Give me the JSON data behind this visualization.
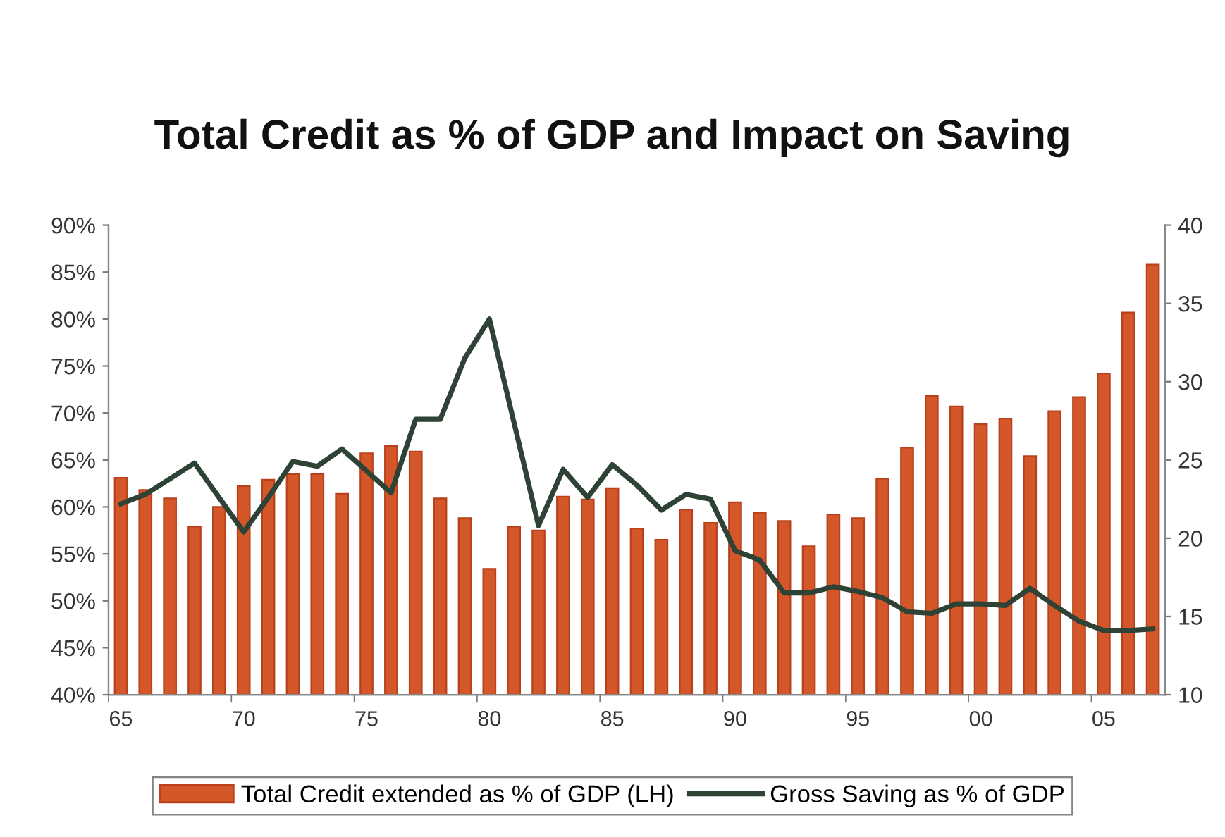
{
  "chart_data": {
    "type": "bar",
    "title": "Total Credit as % of GDP and Impact on Saving",
    "categories": [
      "65",
      null,
      null,
      null,
      null,
      "70",
      null,
      null,
      null,
      null,
      "75",
      null,
      null,
      null,
      null,
      "80",
      null,
      null,
      null,
      null,
      "85",
      null,
      null,
      null,
      null,
      "90",
      null,
      null,
      null,
      null,
      "95",
      null,
      null,
      null,
      null,
      "00",
      null,
      null,
      null,
      null,
      "05",
      null,
      null
    ],
    "series": [
      {
        "name": "Total Credit extended as % of GDP (LH)",
        "color": "#d4572a",
        "values": [
          63.1,
          61.8,
          60.9,
          57.9,
          60.0,
          62.2,
          62.9,
          63.5,
          63.5,
          61.4,
          65.7,
          66.5,
          65.9,
          60.9,
          58.8,
          53.4,
          57.9,
          57.5,
          61.1,
          60.8,
          62.0,
          57.7,
          56.5,
          59.7,
          58.3,
          60.5,
          59.4,
          58.5,
          55.8,
          59.2,
          58.8,
          63.0,
          66.3,
          71.8,
          70.7,
          68.8,
          69.4,
          65.4,
          70.2,
          71.7,
          74.2,
          80.7,
          85.8
        ]
      },
      {
        "name": "Gross Saving as % of GDP",
        "type": "line",
        "axis": "y2",
        "color": "#2e4236",
        "values": [
          22.2,
          22.8,
          23.8,
          24.8,
          22.6,
          20.4,
          22.6,
          24.9,
          24.6,
          25.7,
          24.3,
          22.9,
          27.6,
          27.6,
          31.5,
          34.0,
          27.4,
          20.8,
          24.4,
          22.6,
          24.7,
          23.4,
          21.8,
          22.8,
          22.5,
          19.2,
          18.6,
          16.5,
          16.5,
          16.9,
          16.6,
          16.2,
          15.3,
          15.2,
          15.8,
          15.8,
          15.7,
          16.8,
          15.7,
          14.7,
          14.1,
          14.1,
          14.2
        ]
      }
    ],
    "ylim": [
      40,
      90
    ],
    "yticks": [
      {
        "value": 40,
        "label": "40%"
      },
      {
        "value": 45,
        "label": "45%"
      },
      {
        "value": 50,
        "label": "50%"
      },
      {
        "value": 55,
        "label": "55%"
      },
      {
        "value": 60,
        "label": "60%"
      },
      {
        "value": 65,
        "label": "65%"
      },
      {
        "value": 70,
        "label": "70%"
      },
      {
        "value": 75,
        "label": "75%"
      },
      {
        "value": 80,
        "label": "80%"
      },
      {
        "value": 85,
        "label": "85%"
      },
      {
        "value": 90,
        "label": "90%"
      }
    ],
    "y2lim": [
      10,
      40
    ],
    "y2ticks": [
      10,
      15,
      20,
      25,
      30,
      35,
      40
    ],
    "line_style": "solid",
    "legend": "bottom",
    "grid": false
  }
}
